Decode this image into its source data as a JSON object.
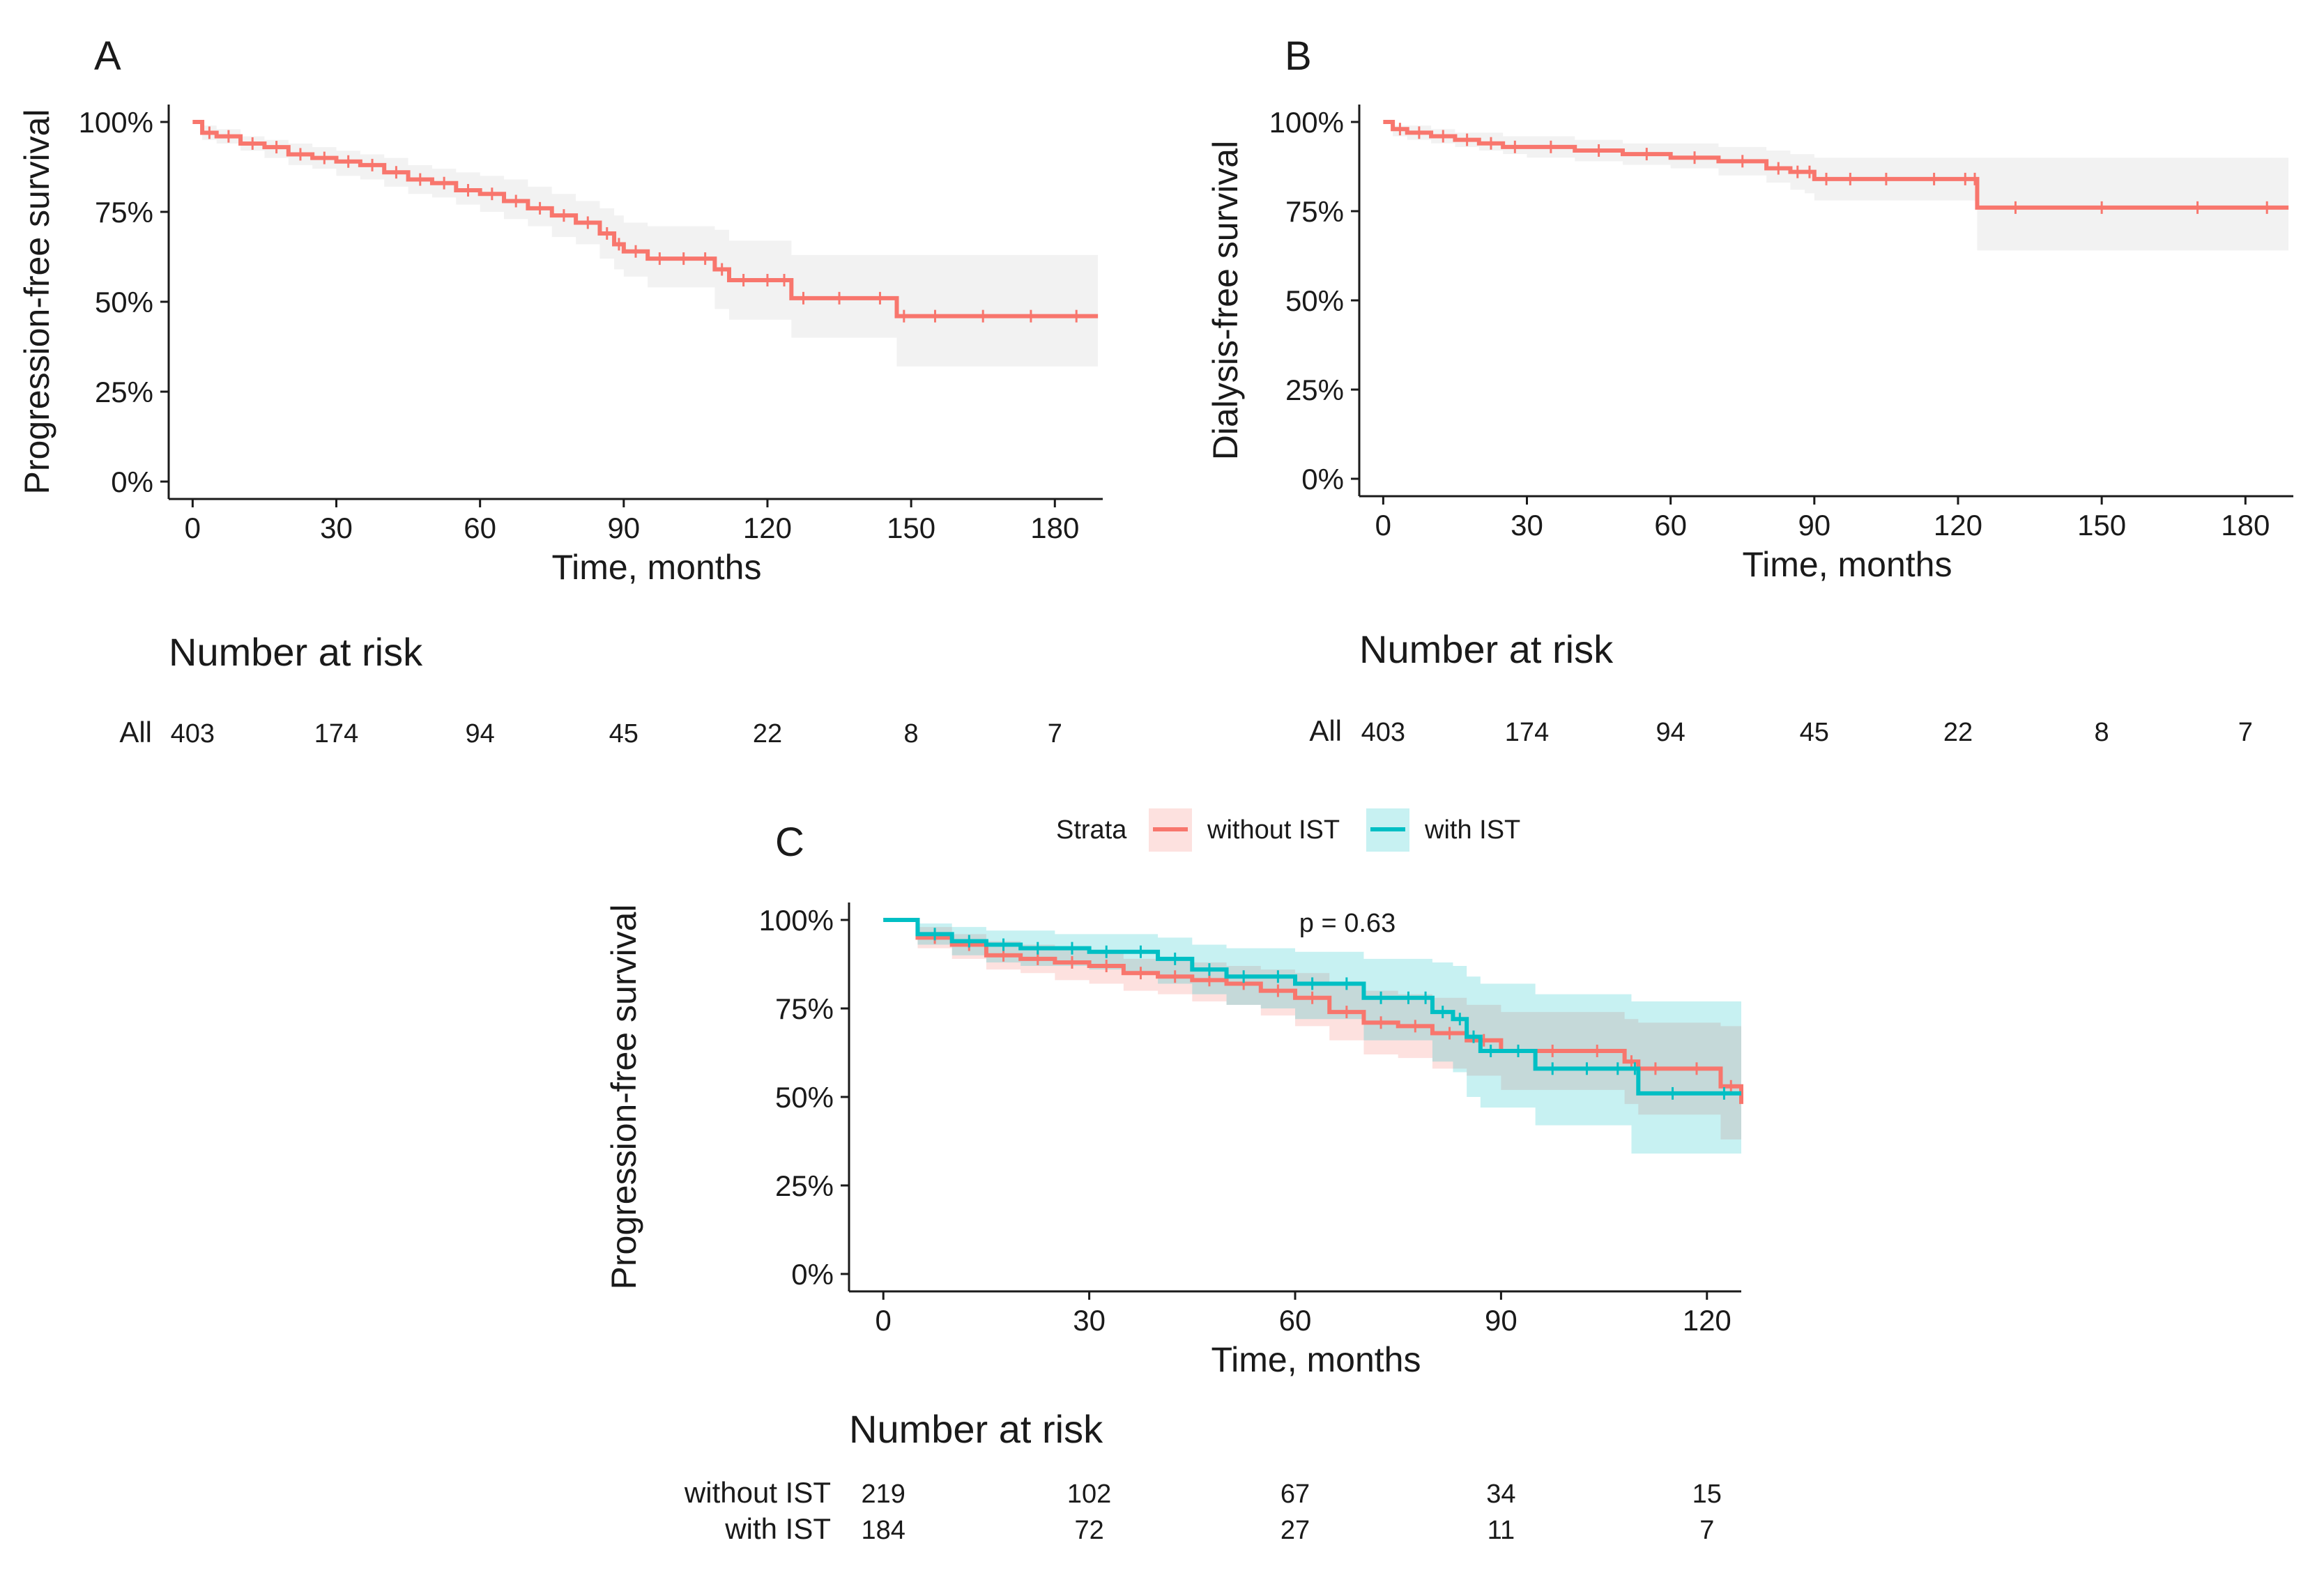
{
  "figure": {
    "colors": {
      "without_ist": "#F8766D",
      "with_ist": "#00BFC4",
      "ci_all": "#e8e8e8",
      "axis": "#1a1a1a"
    }
  },
  "chart_data": [
    {
      "panel": "A",
      "type": "line",
      "title": "",
      "xlabel": "Time, months",
      "ylabel": "Progression-free survival",
      "xlim": [
        -5,
        190
      ],
      "ylim": [
        0,
        1
      ],
      "xticks": [
        "0",
        "30",
        "60",
        "90",
        "120",
        "150",
        "180"
      ],
      "yticks": [
        "0%",
        "25%",
        "50%",
        "75%",
        "100%"
      ],
      "series": [
        {
          "name": "All",
          "color": "#F8766D",
          "x": [
            0,
            2,
            5,
            10,
            15,
            20,
            25,
            30,
            35,
            40,
            45,
            50,
            55,
            60,
            65,
            70,
            75,
            80,
            85,
            88,
            90,
            95,
            100,
            105,
            109,
            112,
            118,
            122,
            125,
            130,
            140,
            147,
            150,
            160,
            170,
            180,
            189
          ],
          "y": [
            1.0,
            0.97,
            0.96,
            0.94,
            0.93,
            0.91,
            0.9,
            0.89,
            0.88,
            0.86,
            0.84,
            0.83,
            0.81,
            0.8,
            0.78,
            0.76,
            0.74,
            0.72,
            0.69,
            0.66,
            0.64,
            0.62,
            0.62,
            0.62,
            0.59,
            0.56,
            0.56,
            0.56,
            0.51,
            0.51,
            0.51,
            0.46,
            0.46,
            0.46,
            0.46,
            0.46,
            0.46
          ],
          "ci_upper": [
            1.0,
            0.99,
            0.98,
            0.96,
            0.95,
            0.94,
            0.93,
            0.92,
            0.91,
            0.9,
            0.88,
            0.87,
            0.86,
            0.85,
            0.84,
            0.82,
            0.8,
            0.78,
            0.76,
            0.74,
            0.72,
            0.71,
            0.71,
            0.71,
            0.7,
            0.67,
            0.67,
            0.67,
            0.63,
            0.63,
            0.63,
            0.63,
            0.63,
            0.63,
            0.63,
            0.63,
            0.63
          ],
          "ci_lower": [
            1.0,
            0.95,
            0.94,
            0.92,
            0.9,
            0.88,
            0.87,
            0.85,
            0.84,
            0.82,
            0.8,
            0.79,
            0.77,
            0.75,
            0.73,
            0.71,
            0.68,
            0.66,
            0.62,
            0.59,
            0.57,
            0.54,
            0.54,
            0.54,
            0.48,
            0.45,
            0.45,
            0.45,
            0.4,
            0.4,
            0.4,
            0.32,
            0.32,
            0.32,
            0.32,
            0.32,
            0.32
          ]
        }
      ],
      "risk_table": {
        "title": "Number at risk",
        "rows": [
          {
            "label": "All",
            "values": [
              "403",
              "174",
              "94",
              "45",
              "22",
              "8",
              "7"
            ]
          }
        ]
      }
    },
    {
      "panel": "B",
      "type": "line",
      "title": "",
      "xlabel": "Time, months",
      "ylabel": "Dialysis-free survival",
      "xlim": [
        -5,
        190
      ],
      "ylim": [
        0,
        1
      ],
      "xticks": [
        "0",
        "30",
        "60",
        "90",
        "120",
        "150",
        "180"
      ],
      "yticks": [
        "0%",
        "25%",
        "50%",
        "75%",
        "100%"
      ],
      "series": [
        {
          "name": "All",
          "color": "#F8766D",
          "x": [
            0,
            2,
            5,
            10,
            15,
            20,
            25,
            30,
            40,
            50,
            60,
            70,
            80,
            85,
            88,
            90,
            95,
            100,
            110,
            120,
            123,
            124,
            140,
            160,
            180,
            189
          ],
          "y": [
            1.0,
            0.98,
            0.97,
            0.96,
            0.95,
            0.94,
            0.93,
            0.93,
            0.92,
            0.91,
            0.9,
            0.89,
            0.87,
            0.86,
            0.86,
            0.84,
            0.84,
            0.84,
            0.84,
            0.84,
            0.84,
            0.76,
            0.76,
            0.76,
            0.76,
            0.76
          ],
          "ci_upper": [
            1.0,
            0.99,
            0.99,
            0.98,
            0.97,
            0.97,
            0.96,
            0.96,
            0.95,
            0.94,
            0.94,
            0.93,
            0.92,
            0.91,
            0.91,
            0.9,
            0.9,
            0.9,
            0.9,
            0.9,
            0.9,
            0.9,
            0.9,
            0.9,
            0.9,
            0.9
          ],
          "ci_lower": [
            1.0,
            0.96,
            0.95,
            0.94,
            0.93,
            0.92,
            0.91,
            0.9,
            0.89,
            0.88,
            0.87,
            0.85,
            0.83,
            0.81,
            0.8,
            0.78,
            0.78,
            0.78,
            0.78,
            0.78,
            0.78,
            0.64,
            0.64,
            0.64,
            0.64,
            0.64
          ]
        }
      ],
      "risk_table": {
        "title": "Number at risk",
        "rows": [
          {
            "label": "All",
            "values": [
              "403",
              "174",
              "94",
              "45",
              "22",
              "8",
              "7"
            ]
          }
        ]
      }
    },
    {
      "panel": "C",
      "type": "line",
      "title": "",
      "xlabel": "Time, months",
      "ylabel": "Progression-free survival",
      "xlim": [
        -5,
        125
      ],
      "ylim": [
        0,
        1
      ],
      "xticks": [
        "0",
        "30",
        "60",
        "90",
        "120"
      ],
      "yticks": [
        "0%",
        "25%",
        "50%",
        "75%",
        "100%"
      ],
      "annotation": "p = 0.63",
      "legend": {
        "title": "Strata",
        "position": "top",
        "entries": [
          "without IST",
          "with IST"
        ]
      },
      "series": [
        {
          "name": "without IST",
          "color": "#F8766D",
          "x": [
            0,
            5,
            10,
            15,
            20,
            25,
            30,
            35,
            40,
            45,
            50,
            55,
            60,
            65,
            70,
            75,
            80,
            85,
            90,
            95,
            100,
            108,
            110,
            115,
            122,
            125
          ],
          "y": [
            1.0,
            0.95,
            0.93,
            0.9,
            0.89,
            0.88,
            0.87,
            0.85,
            0.84,
            0.83,
            0.82,
            0.8,
            0.78,
            0.74,
            0.71,
            0.7,
            0.68,
            0.66,
            0.63,
            0.63,
            0.63,
            0.6,
            0.58,
            0.58,
            0.53,
            0.48
          ],
          "ci_upper": [
            1.0,
            0.98,
            0.96,
            0.94,
            0.93,
            0.92,
            0.91,
            0.89,
            0.89,
            0.88,
            0.87,
            0.86,
            0.85,
            0.82,
            0.8,
            0.79,
            0.78,
            0.76,
            0.74,
            0.74,
            0.74,
            0.72,
            0.71,
            0.71,
            0.7,
            0.66
          ],
          "ci_lower": [
            1.0,
            0.92,
            0.89,
            0.86,
            0.85,
            0.83,
            0.82,
            0.8,
            0.79,
            0.77,
            0.76,
            0.73,
            0.7,
            0.66,
            0.62,
            0.61,
            0.58,
            0.56,
            0.52,
            0.52,
            0.52,
            0.48,
            0.45,
            0.45,
            0.38,
            0.34
          ]
        },
        {
          "name": "with IST",
          "color": "#00BFC4",
          "x": [
            0,
            5,
            10,
            15,
            20,
            25,
            30,
            35,
            40,
            45,
            50,
            55,
            60,
            65,
            70,
            75,
            78,
            80,
            83,
            85,
            87,
            90,
            95,
            100,
            105,
            109,
            110,
            120,
            125
          ],
          "y": [
            1.0,
            0.96,
            0.94,
            0.93,
            0.92,
            0.92,
            0.91,
            0.91,
            0.89,
            0.86,
            0.84,
            0.84,
            0.82,
            0.82,
            0.78,
            0.78,
            0.78,
            0.74,
            0.72,
            0.67,
            0.63,
            0.63,
            0.58,
            0.58,
            0.58,
            0.58,
            0.51,
            0.51,
            0.51
          ],
          "ci_upper": [
            1.0,
            0.99,
            0.98,
            0.97,
            0.97,
            0.96,
            0.96,
            0.96,
            0.95,
            0.93,
            0.92,
            0.92,
            0.91,
            0.91,
            0.89,
            0.89,
            0.89,
            0.88,
            0.87,
            0.84,
            0.82,
            0.82,
            0.79,
            0.79,
            0.79,
            0.77,
            0.77,
            0.77,
            0.77
          ],
          "ci_lower": [
            1.0,
            0.93,
            0.9,
            0.88,
            0.87,
            0.87,
            0.86,
            0.85,
            0.82,
            0.79,
            0.76,
            0.75,
            0.72,
            0.72,
            0.66,
            0.66,
            0.66,
            0.6,
            0.57,
            0.5,
            0.47,
            0.47,
            0.42,
            0.42,
            0.42,
            0.34,
            0.34,
            0.34,
            0.34
          ]
        }
      ],
      "risk_table": {
        "title": "Number at risk",
        "rows": [
          {
            "label": "without IST",
            "values": [
              "219",
              "102",
              "67",
              "34",
              "15"
            ]
          },
          {
            "label": "with IST",
            "values": [
              "184",
              "72",
              "27",
              "11",
              "7"
            ]
          }
        ]
      }
    }
  ]
}
